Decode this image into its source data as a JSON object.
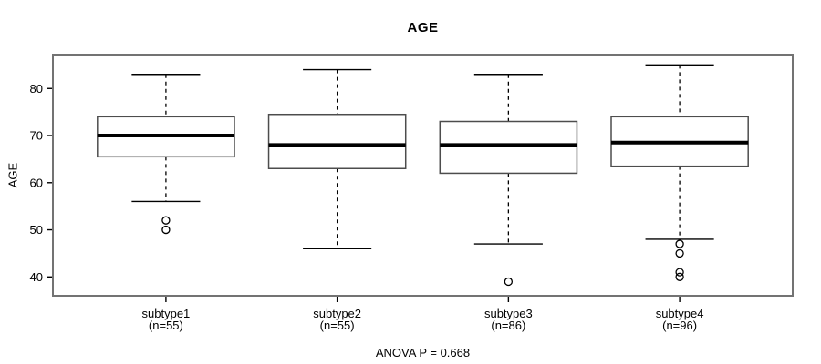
{
  "title": "AGE",
  "y_axis": {
    "label": "AGE"
  },
  "annotation": "ANOVA P = 0.668",
  "colors": {
    "background": "#ffffff",
    "frame": "#737373",
    "box_border": "#4d4d4d",
    "line": "#000000",
    "box_fill": "#ffffff"
  },
  "chart_data": {
    "type": "boxplot",
    "title": "AGE",
    "ylabel": "AGE",
    "xlabel": "",
    "annotation": "ANOVA P = 0.668",
    "ylim": [
      36.0,
      87.2
    ],
    "yticks": [
      40,
      50,
      60,
      70,
      80
    ],
    "grid": false,
    "legend": false,
    "box_width_fraction": 0.8,
    "groups": [
      {
        "label": "subtype1",
        "sublabel": "(n=55)",
        "n": 55,
        "whisker_low": 56,
        "q1": 65.5,
        "median": 70,
        "q3": 74,
        "whisker_high": 83,
        "outliers": [
          52,
          50
        ]
      },
      {
        "label": "subtype2",
        "sublabel": "(n=55)",
        "n": 55,
        "whisker_low": 46,
        "q1": 63,
        "median": 68,
        "q3": 74.5,
        "whisker_high": 84,
        "outliers": []
      },
      {
        "label": "subtype3",
        "sublabel": "(n=86)",
        "n": 86,
        "whisker_low": 47,
        "q1": 62,
        "median": 68,
        "q3": 73,
        "whisker_high": 83,
        "outliers": [
          39
        ]
      },
      {
        "label": "subtype4",
        "sublabel": "(n=96)",
        "n": 96,
        "whisker_low": 48,
        "q1": 63.5,
        "median": 68.5,
        "q3": 74,
        "whisker_high": 85,
        "outliers": [
          47,
          45,
          41,
          40
        ]
      }
    ]
  }
}
